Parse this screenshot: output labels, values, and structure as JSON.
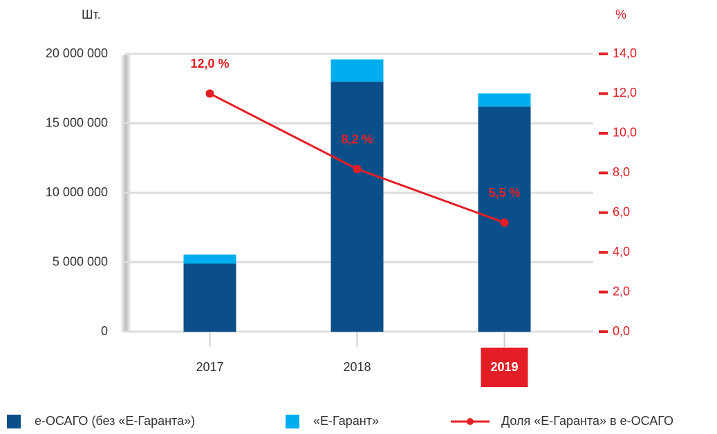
{
  "chart_data": {
    "type": "bar",
    "stacked": true,
    "y_label": "Шт.",
    "y2_label": "%",
    "categories": [
      "2017",
      "2018",
      "2019"
    ],
    "highlight_index": 2,
    "series": [
      {
        "name": "е-ОСАГО (без «Е-Гаранта»)",
        "color": "#0b4f8a",
        "values": [
          4900000,
          18000000,
          16200000
        ]
      },
      {
        "name": "«Е-Гарант»",
        "color": "#00aeef",
        "values": [
          650000,
          1600000,
          950000
        ]
      },
      {
        "name": "Доля  «Е-Гаранта» в е-ОСАГО",
        "type": "line",
        "axis": "y2",
        "color": "#e31e24",
        "values": [
          12.0,
          8.2,
          5.5
        ],
        "value_labels": [
          "12,0 %",
          "8,2 %",
          "5,5 %"
        ]
      }
    ],
    "ylim": [
      0,
      20000000
    ],
    "yticks": [
      0,
      {
        "value": 5000000,
        "label": "5 000 000"
      },
      {
        "value": 10000000,
        "label": "10 000 000"
      },
      {
        "value": 15000000,
        "label": "15 000 000"
      },
      {
        "value": 20000000,
        "label": "20 000 000"
      }
    ],
    "y2lim": [
      0,
      14
    ],
    "y2ticks": [
      {
        "value": 0,
        "label": "0,0"
      },
      {
        "value": 2,
        "label": "2,0"
      },
      {
        "value": 4,
        "label": "4,0"
      },
      {
        "value": 6,
        "label": "6,0"
      },
      {
        "value": 8,
        "label": "8,0"
      },
      {
        "value": 10,
        "label": "10,0"
      },
      {
        "value": 12,
        "label": "12,0"
      },
      {
        "value": 14,
        "label": "14,0"
      }
    ],
    "grid": true
  }
}
